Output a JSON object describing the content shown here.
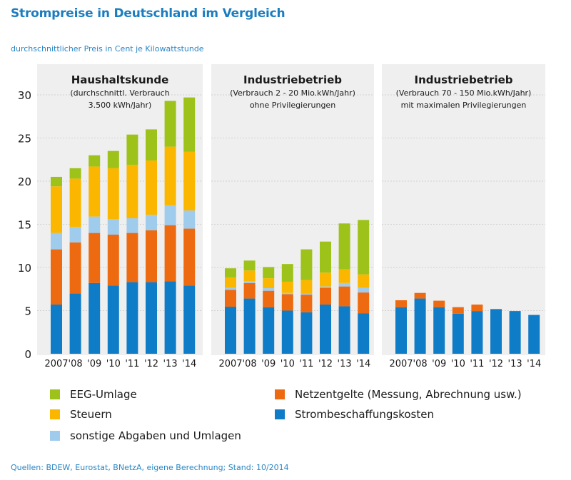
{
  "title": "Strompreise in Deutschland im Vergleich",
  "subtitle": "durchschnittlicher Preis in Cent je Kilowattstunde",
  "source": "Quellen: BDEW, Eurostat, BNetzA, eigene Berechnung; Stand: 10/2014",
  "chart_data": {
    "type": "bar",
    "stacked": true,
    "title": "Strompreise in Deutschland im Vergleich",
    "ylabel": "durchschnittlicher Preis in Cent je Kilowattstunde",
    "ylim": [
      0,
      30
    ],
    "yticks": [
      "0",
      "5",
      "10",
      "15",
      "20",
      "25",
      "30"
    ],
    "ytick_values": [
      0,
      5,
      10,
      15,
      20,
      25,
      30
    ],
    "grid": true,
    "legend_position": "bottom",
    "categories": [
      "2007",
      "'08",
      "'09",
      "'10",
      "'11",
      "'12",
      "'13",
      "'14"
    ],
    "series_order": [
      "Strombeschaffungskosten",
      "Netzentgelte (Messung, Abrechnung usw.)",
      "sonstige Abgaben und Umlagen",
      "Steuern",
      "EEG-Umlage"
    ],
    "colors": {
      "Strombeschaffungskosten": "#0f7cc8",
      "Netzentgelte (Messung, Abrechnung usw.)": "#ee6a10",
      "sonstige Abgaben und Umlagen": "#9fcbec",
      "Steuern": "#fbb700",
      "EEG-Umlage": "#9dc21a"
    },
    "panels": [
      {
        "title": "Haushaltskunde",
        "subtitle_lines": [
          "(durchschnittl. Verbrauch",
          "3.500 kWh/Jahr)"
        ],
        "series": [
          {
            "name": "Strombeschaffungskosten",
            "values": [
              5.7,
              7.0,
              8.2,
              7.9,
              8.3,
              8.3,
              8.4,
              7.9
            ]
          },
          {
            "name": "Netzentgelte (Messung, Abrechnung usw.)",
            "values": [
              6.4,
              5.9,
              5.8,
              5.9,
              5.7,
              6.0,
              6.5,
              6.6
            ]
          },
          {
            "name": "sonstige Abgaben und Umlagen",
            "values": [
              1.9,
              1.8,
              1.9,
              1.8,
              1.7,
              1.8,
              2.3,
              2.1
            ]
          },
          {
            "name": "Steuern",
            "values": [
              5.4,
              5.6,
              5.8,
              5.9,
              6.2,
              6.3,
              6.8,
              6.8
            ]
          },
          {
            "name": "EEG-Umlage",
            "values": [
              1.1,
              1.2,
              1.3,
              2.0,
              3.5,
              3.6,
              5.3,
              6.3
            ]
          }
        ],
        "totals": [
          20.5,
          21.5,
          23.0,
          23.5,
          25.4,
          26.0,
          29.3,
          29.7
        ]
      },
      {
        "title": "Industriebetrieb",
        "subtitle_lines": [
          "(Verbrauch 2 - 20 Mio.kWh/Jahr)",
          "ohne Privilegierungen"
        ],
        "series": [
          {
            "name": "Strombeschaffungskosten",
            "values": [
              5.45,
              6.4,
              5.4,
              5.0,
              4.8,
              5.7,
              5.5,
              4.7
            ]
          },
          {
            "name": "Netzentgelte (Messung, Abrechnung usw.)",
            "values": [
              1.95,
              1.8,
              1.9,
              1.9,
              2.05,
              1.95,
              2.3,
              2.4
            ]
          },
          {
            "name": "sonstige Abgaben und Umlagen",
            "values": [
              0.25,
              0.2,
              0.3,
              0.15,
              0.1,
              0.15,
              0.4,
              0.55
            ]
          },
          {
            "name": "Steuern",
            "values": [
              1.2,
              1.25,
              1.15,
              1.3,
              1.6,
              1.6,
              1.6,
              1.55
            ]
          },
          {
            "name": "EEG-Umlage",
            "values": [
              1.05,
              1.15,
              1.3,
              2.05,
              3.55,
              3.6,
              5.3,
              6.3
            ]
          }
        ],
        "totals": [
          9.9,
          10.8,
          10.05,
          10.4,
          12.1,
          13.0,
          15.1,
          15.5
        ]
      },
      {
        "title": "Industriebetrieb",
        "subtitle_lines": [
          "(Verbrauch 70 - 150 Mio.kWh/Jahr)",
          "mit maximalen Privilegierungen"
        ],
        "series": [
          {
            "name": "Strombeschaffungskosten",
            "values": [
              5.4,
              6.4,
              5.4,
              4.65,
              4.95,
              5.15,
              4.95,
              4.5
            ]
          },
          {
            "name": "Netzentgelte (Messung, Abrechnung usw.)",
            "values": [
              0.8,
              0.65,
              0.75,
              0.75,
              0.75,
              0.05,
              0.0,
              0.0
            ]
          },
          {
            "name": "sonstige Abgaben und Umlagen",
            "values": [
              0,
              0,
              0,
              0,
              0,
              0,
              0,
              0
            ]
          },
          {
            "name": "Steuern",
            "values": [
              0,
              0,
              0,
              0,
              0,
              0,
              0,
              0
            ]
          },
          {
            "name": "EEG-Umlage",
            "values": [
              0,
              0,
              0,
              0,
              0,
              0,
              0,
              0
            ]
          }
        ],
        "totals": [
          6.2,
          7.05,
          6.15,
          5.4,
          5.7,
          5.2,
          4.95,
          4.5
        ]
      }
    ]
  },
  "legend": [
    {
      "label": "EEG-Umlage",
      "color": "#9dc21a"
    },
    {
      "label": "Steuern",
      "color": "#fbb700"
    },
    {
      "label": "sonstige Abgaben und Umlagen",
      "color": "#9fcbec"
    },
    {
      "label": "Netzentgelte (Messung, Abrechnung usw.)",
      "color": "#ee6a10"
    },
    {
      "label": "Strombeschaffungskosten",
      "color": "#0f7cc8"
    }
  ]
}
